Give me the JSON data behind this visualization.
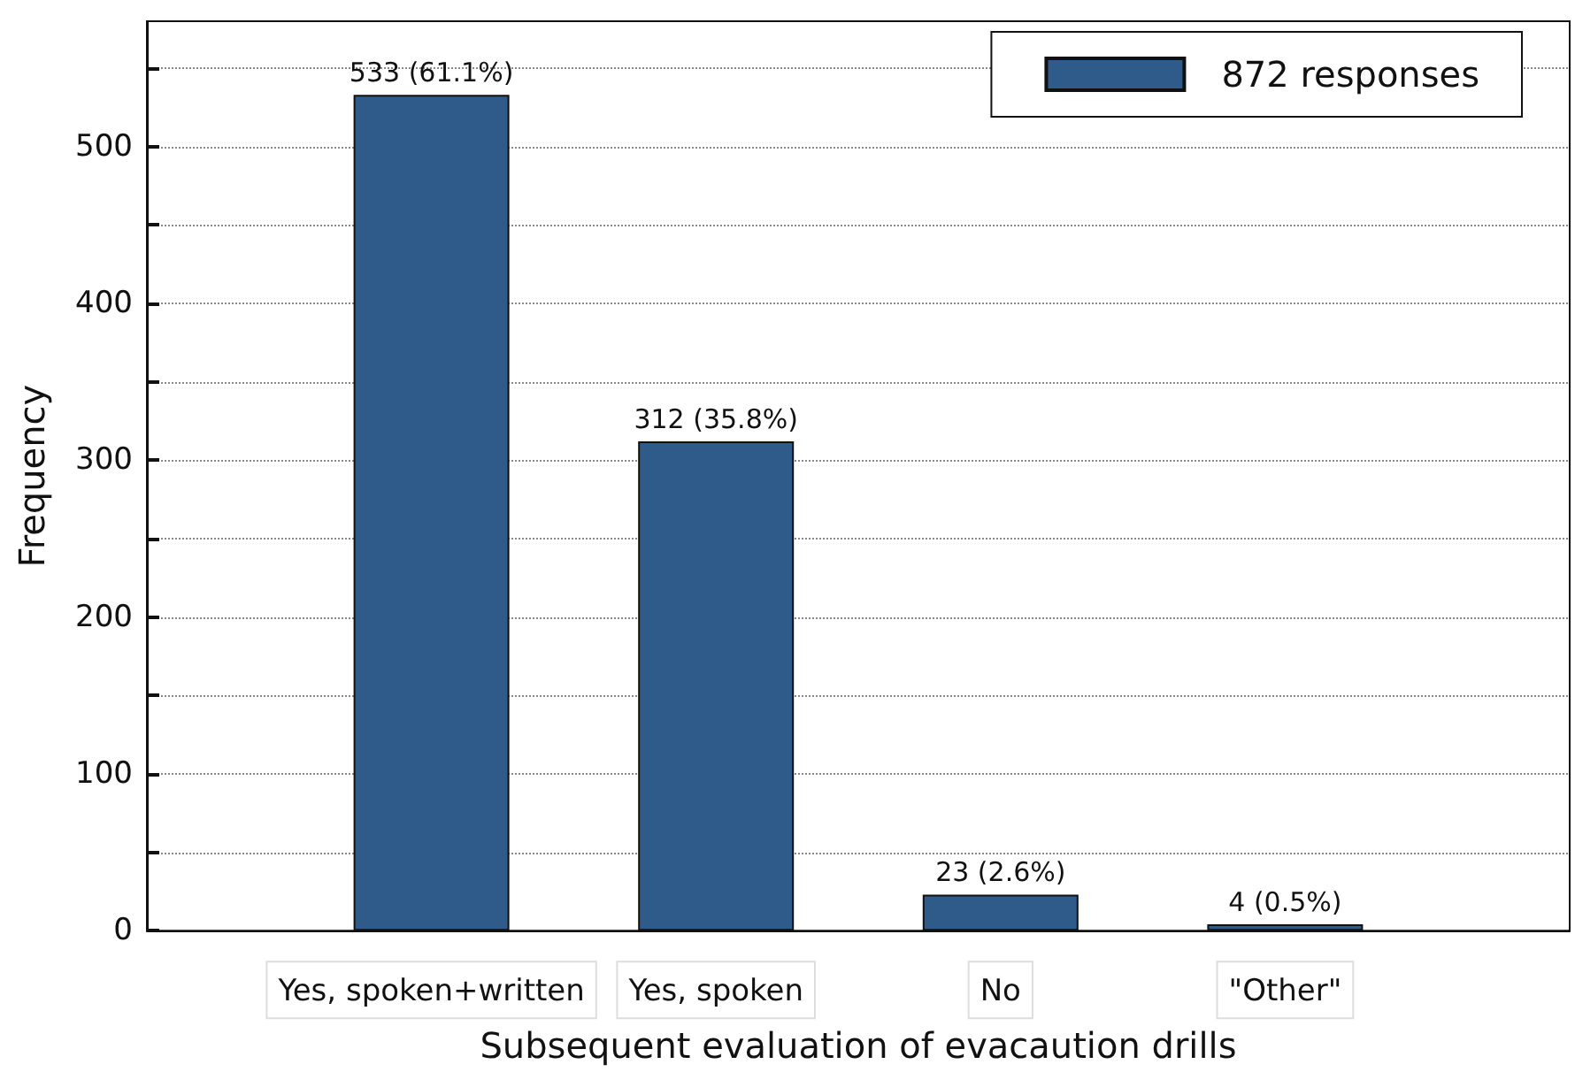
{
  "chart_data": {
    "type": "bar",
    "xlabel": "Subsequent evaluation of evacaution drills",
    "ylabel": "Frequency",
    "categories": [
      "Yes, spoken+written",
      "Yes, spoken",
      "No",
      "\"Other\""
    ],
    "series": [
      {
        "name": "872 responses",
        "color": "#2e5b8a",
        "values": [
          533,
          312,
          23,
          4
        ],
        "value_labels": [
          "533 (61.1%)",
          "312 (35.8%)",
          "23 (2.6%)",
          "4 (0.5%)"
        ]
      }
    ],
    "ylim": [
      0,
      580
    ],
    "yticks": [
      0,
      {
        "value": 50,
        "label": null
      },
      100,
      {
        "value": 150,
        "label": null
      },
      200,
      {
        "value": 250,
        "label": null
      },
      300,
      {
        "value": 350,
        "label": null
      },
      400,
      {
        "value": 450,
        "label": null
      },
      500,
      {
        "value": 550,
        "label": null
      }
    ],
    "grid": "y",
    "legend": "top right"
  }
}
